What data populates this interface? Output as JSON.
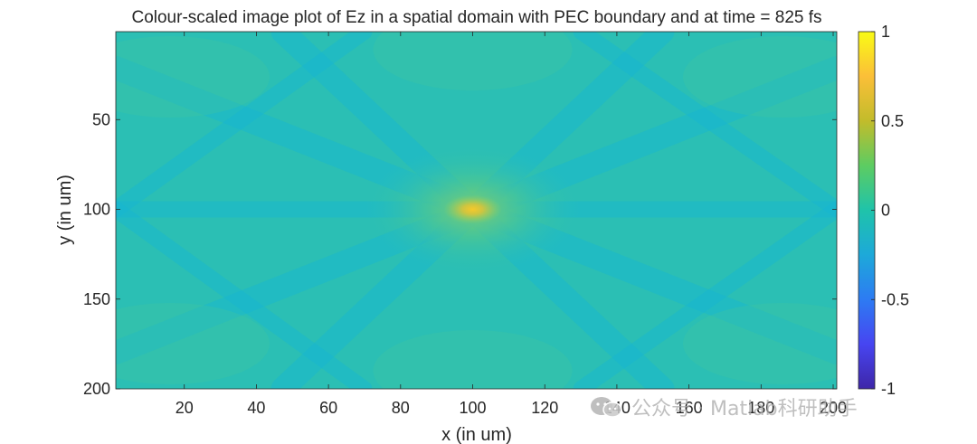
{
  "chart_data": {
    "type": "heatmap",
    "title": "Colour-scaled image plot of Ez in a spatial domain with PEC boundary and at time = 825 fs",
    "xlabel": "x (in um)",
    "ylabel": "y (in um)",
    "xlim": [
      1,
      201
    ],
    "ylim": [
      1,
      200
    ],
    "y_direction": "reversed",
    "x_ticks": [
      20,
      40,
      60,
      80,
      100,
      120,
      140,
      160,
      180,
      200
    ],
    "y_ticks": [
      50,
      100,
      150,
      200
    ],
    "colormap": "parula",
    "clim": [
      -1,
      1
    ],
    "colorbar_ticks": [
      1,
      0.5,
      0,
      -0.5,
      -1
    ],
    "colorbar_tick_labels": [
      "1",
      "0.5",
      "0",
      "-0.5",
      "-1"
    ],
    "source_center": [
      100,
      100
    ],
    "peak_value": 0.72,
    "colors": {
      "background_field": "#2bbfb4",
      "wavefront_low": "#17b6d3",
      "peak": "#f6c92a",
      "colormap_stops": [
        "#3e26a8",
        "#4745f1",
        "#2d7bf3",
        "#1da9d9",
        "#1fc3aa",
        "#5dcc62",
        "#c2bc2b",
        "#fbbf38",
        "#f9fb15"
      ]
    }
  },
  "watermark": {
    "icon": "wechat-icon",
    "text": "公众号 · Matlab科研助手"
  }
}
